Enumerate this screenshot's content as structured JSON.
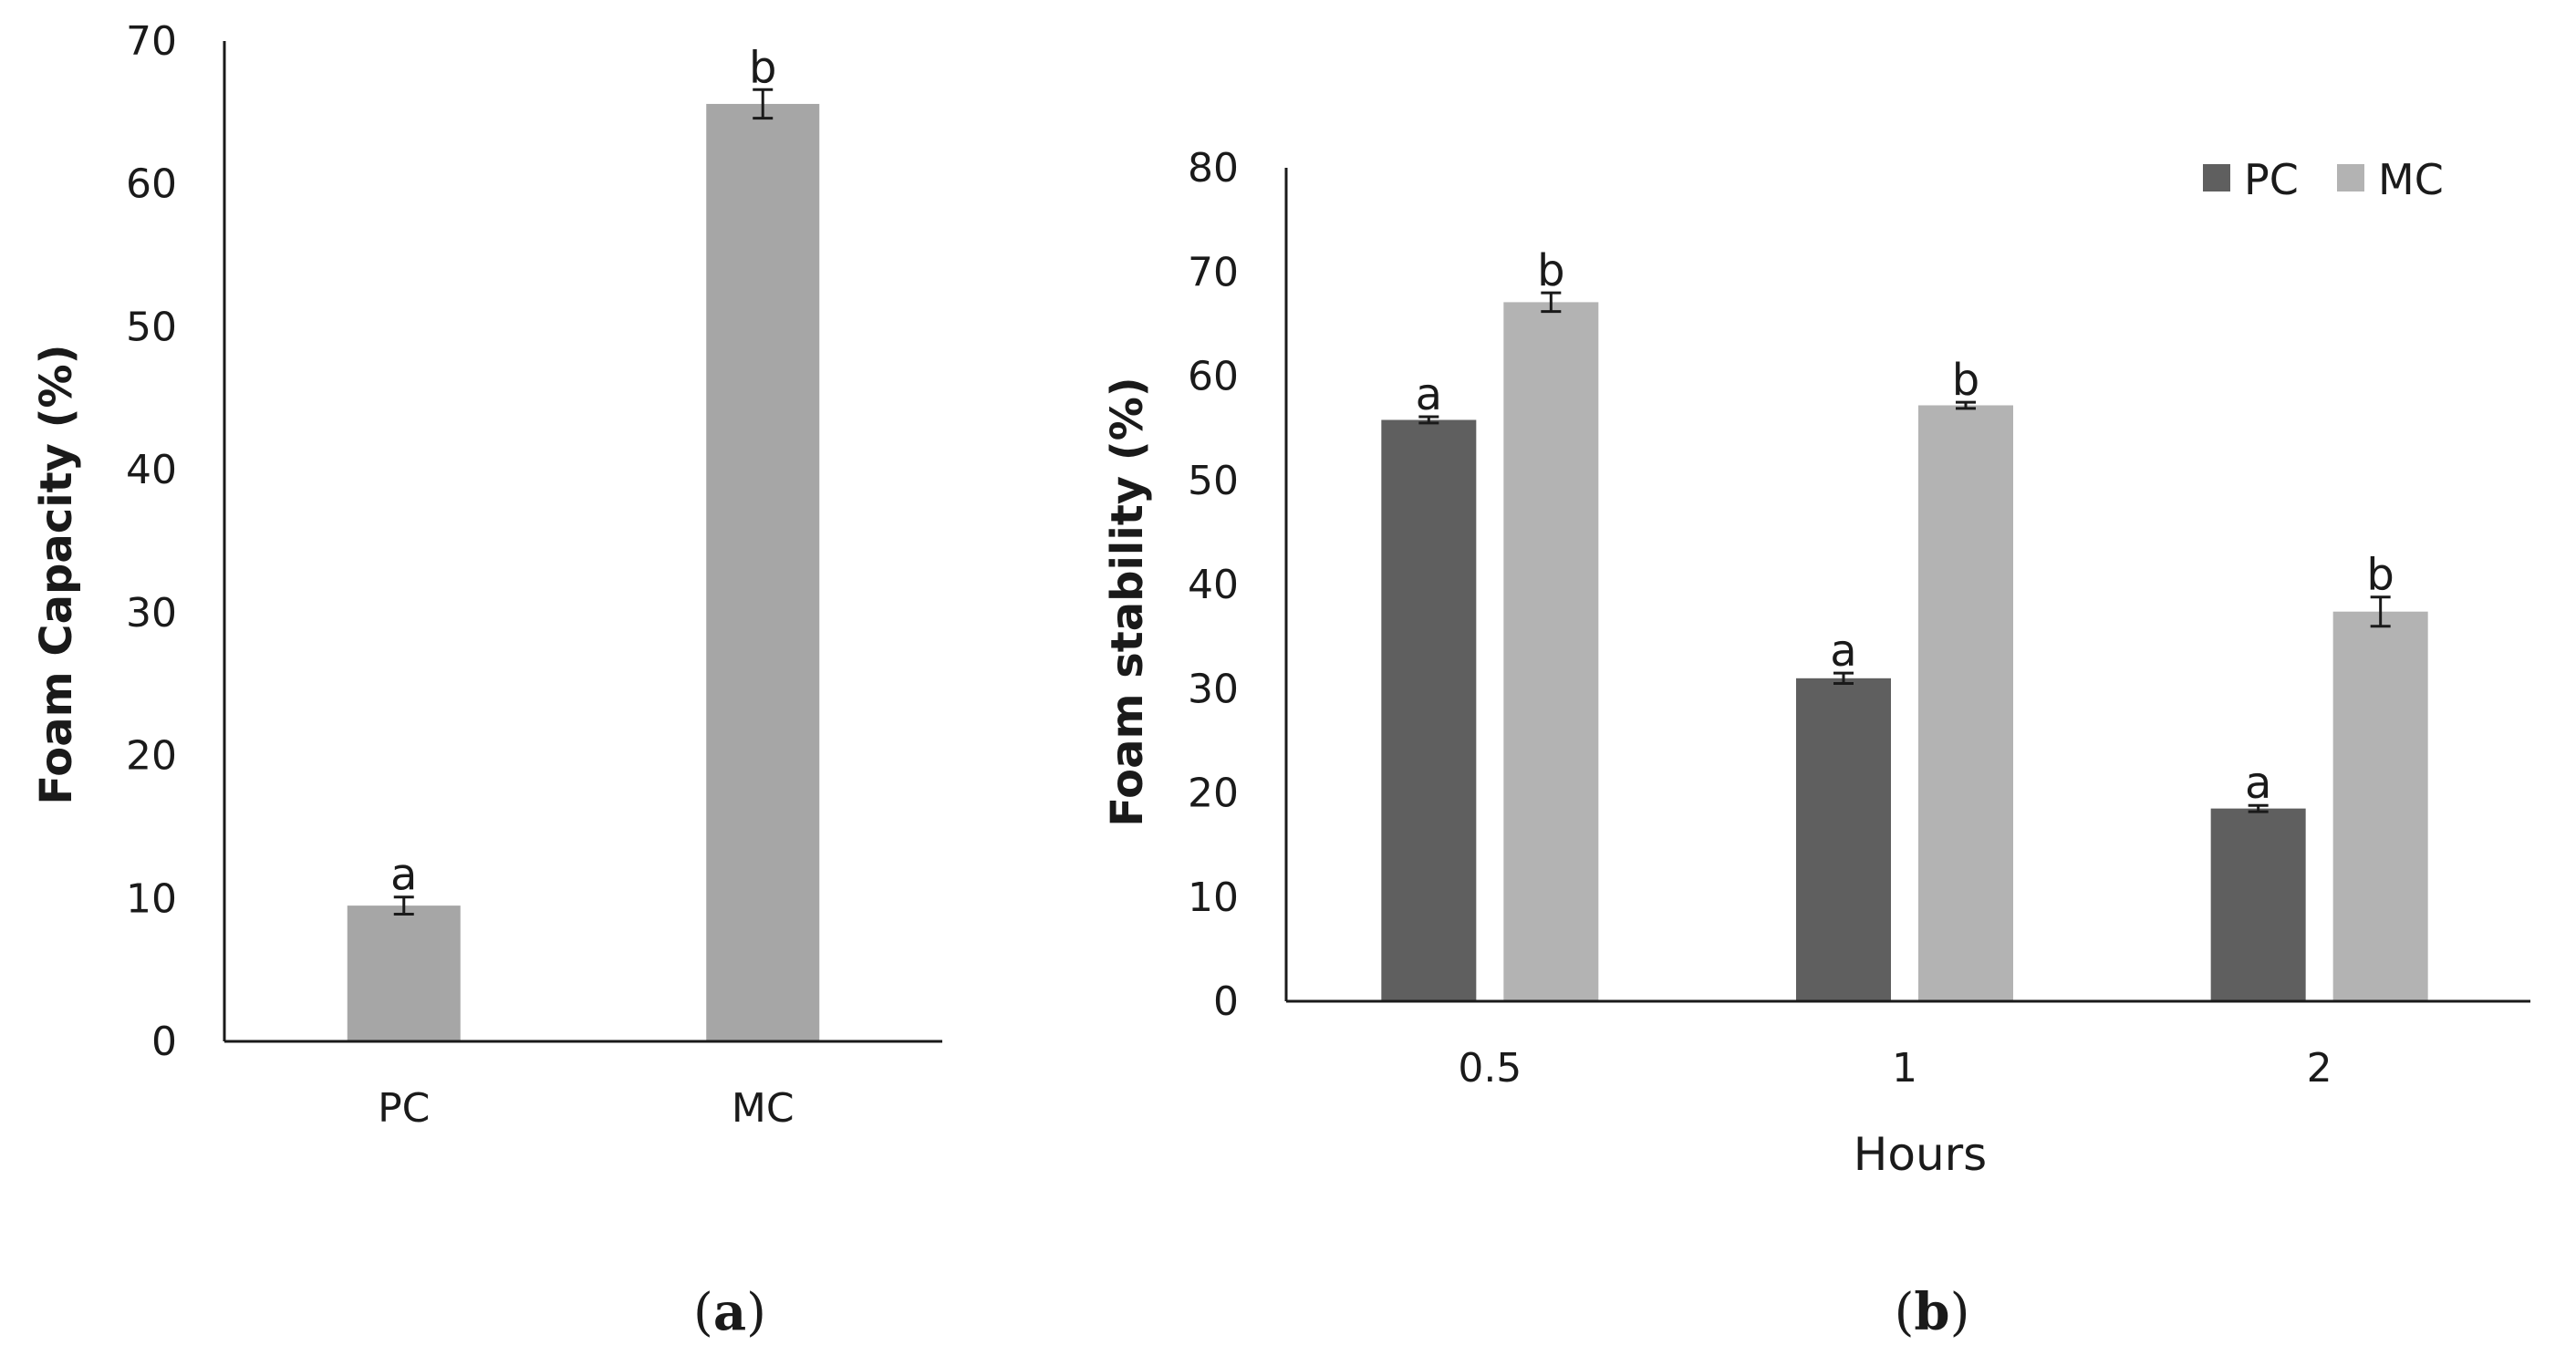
{
  "colors": {
    "pc": "#5f5f5f",
    "mc": "#b3b3b3",
    "single": "#a6a6a6",
    "axis": "#1a1a1a"
  },
  "chart_data": [
    {
      "type": "bar",
      "panel": "a",
      "title": "",
      "categories": [
        "PC",
        "MC"
      ],
      "values": [
        9.5,
        65.6
      ],
      "errors": [
        0.6,
        1.0
      ],
      "significance": [
        "a",
        "b"
      ],
      "xlabel": "",
      "ylabel": "Foam Capacity (%)",
      "ylim": [
        0,
        70
      ],
      "yticks": [
        0,
        10,
        20,
        30,
        40,
        50,
        60,
        70
      ],
      "grid": false,
      "legend": null
    },
    {
      "type": "bar",
      "panel": "b",
      "title": "",
      "categories": [
        "0.5",
        "1",
        "2"
      ],
      "series": [
        {
          "name": "PC",
          "values": [
            55.8,
            31.0,
            18.5
          ],
          "errors": [
            0.3,
            0.5,
            0.3
          ],
          "significance": [
            "a",
            "a",
            "a"
          ]
        },
        {
          "name": "MC",
          "values": [
            67.1,
            57.2,
            37.4
          ],
          "errors": [
            0.9,
            0.3,
            1.4
          ],
          "significance": [
            "b",
            "b",
            "b"
          ]
        }
      ],
      "xlabel": "Hours",
      "ylabel": "Foam stability (%)",
      "ylim": [
        0,
        80
      ],
      "yticks": [
        0,
        10,
        20,
        30,
        40,
        50,
        60,
        70,
        80
      ],
      "grid": false,
      "legend": "top-right"
    }
  ],
  "panels": {
    "a": "a",
    "b": "b"
  }
}
